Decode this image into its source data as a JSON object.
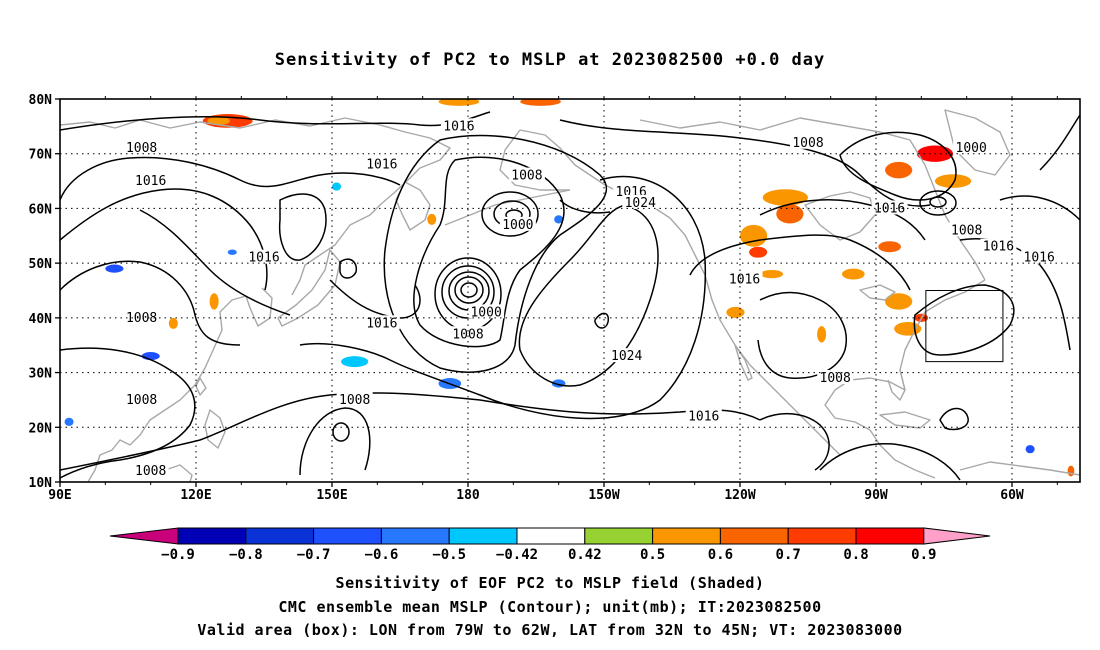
{
  "title": "Sensitivity of PC2 to MSLP at 2023082500 +0.0 day",
  "map": {
    "lat_labels": [
      "80N",
      "70N",
      "60N",
      "50N",
      "40N",
      "30N",
      "20N",
      "10N"
    ],
    "lat_values": [
      80,
      70,
      60,
      50,
      40,
      30,
      20,
      10
    ],
    "lon_labels": [
      "90E",
      "120E",
      "150E",
      "180",
      "150W",
      "120W",
      "90W",
      "60W"
    ],
    "lon_values": [
      90,
      120,
      150,
      180,
      210,
      240,
      270,
      300
    ],
    "lon_range": [
      90,
      315
    ],
    "lat_range": [
      10,
      80
    ],
    "valid_box": {
      "lon_west": 281,
      "lon_east": 298,
      "lat_south": 32,
      "lat_north": 45
    },
    "contour_labels": [
      {
        "text": "1016",
        "lon": 178,
        "lat": 75
      },
      {
        "text": "1008",
        "lon": 108,
        "lat": 71
      },
      {
        "text": "1016",
        "lon": 110,
        "lat": 65
      },
      {
        "text": "1016",
        "lon": 161,
        "lat": 68
      },
      {
        "text": "1008",
        "lon": 108,
        "lat": 40
      },
      {
        "text": "1016",
        "lon": 135,
        "lat": 51
      },
      {
        "text": "1016",
        "lon": 161,
        "lat": 39
      },
      {
        "text": "1008",
        "lon": 108,
        "lat": 25
      },
      {
        "text": "1008",
        "lon": 155,
        "lat": 25
      },
      {
        "text": "1008",
        "lon": 110,
        "lat": 12
      },
      {
        "text": "1008",
        "lon": 193,
        "lat": 66
      },
      {
        "text": "1000",
        "lon": 191,
        "lat": 57
      },
      {
        "text": "1016",
        "lon": 216,
        "lat": 63
      },
      {
        "text": "1024",
        "lon": 218,
        "lat": 61
      },
      {
        "text": "1000",
        "lon": 184,
        "lat": 41
      },
      {
        "text": "1008",
        "lon": 180,
        "lat": 37
      },
      {
        "text": "1024",
        "lon": 215,
        "lat": 33
      },
      {
        "text": "1016",
        "lon": 232,
        "lat": 22
      },
      {
        "text": "1008",
        "lon": 255,
        "lat": 72
      },
      {
        "text": "1016",
        "lon": 241,
        "lat": 47
      },
      {
        "text": "1016",
        "lon": 273,
        "lat": 60
      },
      {
        "text": "1000",
        "lon": 291,
        "lat": 71
      },
      {
        "text": "1008",
        "lon": 290,
        "lat": 56
      },
      {
        "text": "1016",
        "lon": 297,
        "lat": 53
      },
      {
        "text": "1016",
        "lon": 306,
        "lat": 51
      },
      {
        "text": "1008",
        "lon": 261,
        "lat": 29
      }
    ],
    "shading": [
      {
        "lon": 127,
        "lat": 76,
        "w": 11,
        "h": 2.5,
        "v": 0.75
      },
      {
        "lon": 125,
        "lat": 76,
        "w": 5,
        "h": 1.5,
        "v": 0.55
      },
      {
        "lon": 178,
        "lat": 79.5,
        "w": 9,
        "h": 1.5,
        "v": 0.5
      },
      {
        "lon": 196,
        "lat": 79.5,
        "w": 9,
        "h": 1.5,
        "v": 0.6
      },
      {
        "lon": 283,
        "lat": 70,
        "w": 8,
        "h": 3,
        "v": 0.8
      },
      {
        "lon": 275,
        "lat": 67,
        "w": 6,
        "h": 3,
        "v": 0.6
      },
      {
        "lon": 287,
        "lat": 65,
        "w": 8,
        "h": 2.5,
        "v": 0.5
      },
      {
        "lon": 250,
        "lat": 62,
        "w": 10,
        "h": 3,
        "v": 0.5
      },
      {
        "lon": 251,
        "lat": 59,
        "w": 6,
        "h": 3.5,
        "v": 0.6
      },
      {
        "lon": 243,
        "lat": 55,
        "w": 6,
        "h": 4,
        "v": 0.55
      },
      {
        "lon": 244,
        "lat": 52,
        "w": 4,
        "h": 2,
        "v": 0.7
      },
      {
        "lon": 273,
        "lat": 53,
        "w": 5,
        "h": 2,
        "v": 0.65
      },
      {
        "lon": 265,
        "lat": 48,
        "w": 5,
        "h": 2,
        "v": 0.5
      },
      {
        "lon": 275,
        "lat": 43,
        "w": 6,
        "h": 3,
        "v": 0.5
      },
      {
        "lon": 277,
        "lat": 38,
        "w": 6,
        "h": 2.5,
        "v": 0.55
      },
      {
        "lon": 280,
        "lat": 40,
        "w": 3,
        "h": 1.5,
        "v": 0.7
      },
      {
        "lon": 247,
        "lat": 48,
        "w": 5,
        "h": 1.5,
        "v": 0.5
      },
      {
        "lon": 239,
        "lat": 41,
        "w": 4,
        "h": 2,
        "v": 0.5
      },
      {
        "lon": 124,
        "lat": 43,
        "w": 2,
        "h": 3,
        "v": 0.5
      },
      {
        "lon": 115,
        "lat": 39,
        "w": 2,
        "h": 2,
        "v": 0.5
      },
      {
        "lon": 172,
        "lat": 58,
        "w": 2,
        "h": 2,
        "v": 0.5
      },
      {
        "lon": 258,
        "lat": 37,
        "w": 2,
        "h": 3,
        "v": 0.5
      },
      {
        "lon": 313,
        "lat": 12,
        "w": 1.5,
        "h": 2,
        "v": 0.6
      },
      {
        "lon": 102,
        "lat": 49,
        "w": 4,
        "h": 1.5,
        "v": -0.6
      },
      {
        "lon": 110,
        "lat": 33,
        "w": 4,
        "h": 1.5,
        "v": -0.6
      },
      {
        "lon": 155,
        "lat": 32,
        "w": 6,
        "h": 2,
        "v": -0.45
      },
      {
        "lon": 176,
        "lat": 28,
        "w": 5,
        "h": 2,
        "v": -0.5
      },
      {
        "lon": 200,
        "lat": 28,
        "w": 3,
        "h": 1.5,
        "v": -0.5
      },
      {
        "lon": 151,
        "lat": 64,
        "w": 2,
        "h": 1.5,
        "v": -0.45
      },
      {
        "lon": 200,
        "lat": 58,
        "w": 2,
        "h": 1.5,
        "v": -0.5
      },
      {
        "lon": 128,
        "lat": 52,
        "w": 2,
        "h": 1,
        "v": -0.5
      },
      {
        "lon": 92,
        "lat": 21,
        "w": 2,
        "h": 1.5,
        "v": -0.5
      },
      {
        "lon": 304,
        "lat": 16,
        "w": 2,
        "h": 1.5,
        "v": -0.6
      }
    ]
  },
  "colorbar": {
    "labels": [
      "-0.9",
      "-0.8",
      "-0.7",
      "-0.6",
      "-0.5",
      "-0.42",
      "0.42",
      "0.5",
      "0.6",
      "0.7",
      "0.8",
      "0.9"
    ],
    "colors": [
      "#0000b4",
      "#0a32d7",
      "#1e50ff",
      "#2878ff",
      "#00c8ff",
      "#ffffff",
      "#96d232",
      "#fa9600",
      "#fa6400",
      "#ff3c00",
      "#ff0000"
    ],
    "left_tip": "#c8007a",
    "right_tip": "#ffa0c8"
  },
  "caption": {
    "line1": "Sensitivity of EOF PC2 to MSLP field (Shaded)",
    "line2": "CMC ensemble mean MSLP (Contour); unit(mb); IT:2023082500",
    "line3": "Valid area (box): LON from 79W to 62W, LAT from 32N to 45N; VT: 2023083000"
  }
}
